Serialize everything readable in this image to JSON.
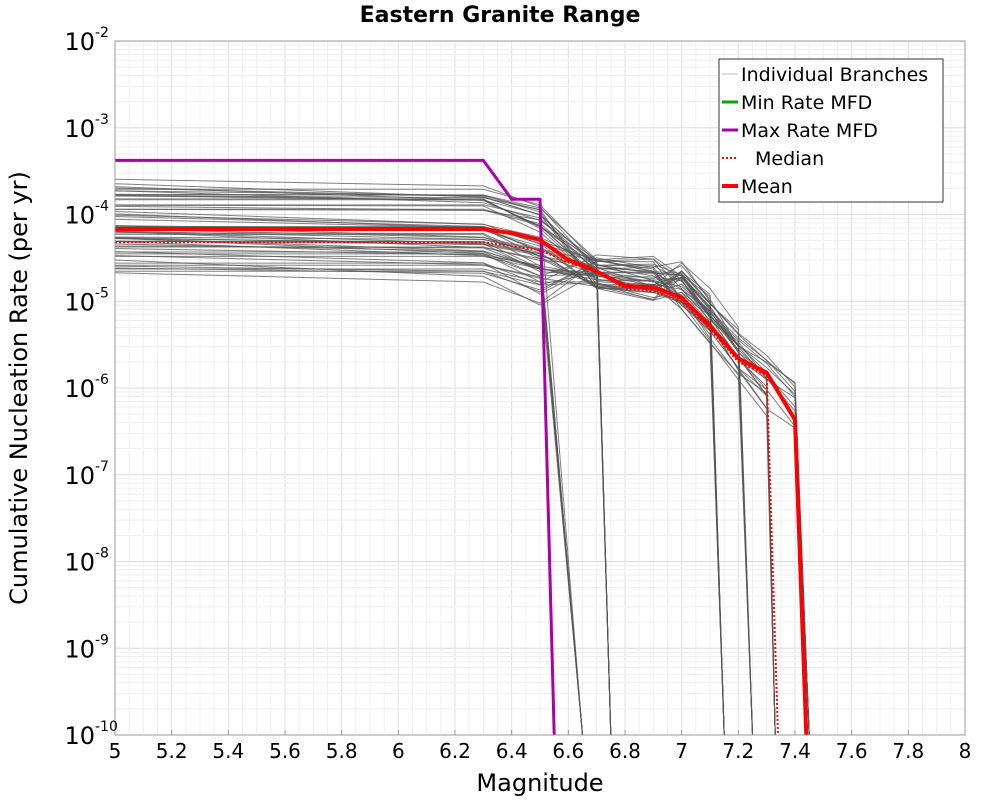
{
  "chart_data": {
    "type": "line",
    "title": "Eastern Granite Range",
    "xlabel": "Magnitude",
    "ylabel": "Cumulative Nucleation Rate (per yr)",
    "xlim": [
      5,
      8
    ],
    "ylim_log10": [
      -10,
      -2
    ],
    "y_scale": "log",
    "x_ticks": [
      "5",
      "5.2",
      "5.4",
      "5.6",
      "5.8",
      "6",
      "6.2",
      "6.4",
      "6.6",
      "6.8",
      "7",
      "7.2",
      "7.4",
      "7.6",
      "7.8",
      "8"
    ],
    "y_ticks": [
      {
        "base": "10",
        "exp": "-10",
        "value_log10": -10
      },
      {
        "base": "10",
        "exp": "-9",
        "value_log10": -9
      },
      {
        "base": "10",
        "exp": "-8",
        "value_log10": -8
      },
      {
        "base": "10",
        "exp": "-7",
        "value_log10": -7
      },
      {
        "base": "10",
        "exp": "-6",
        "value_log10": -6
      },
      {
        "base": "10",
        "exp": "-5",
        "value_log10": -5
      },
      {
        "base": "10",
        "exp": "-4",
        "value_log10": -4
      },
      {
        "base": "10",
        "exp": "-3",
        "value_log10": -3
      },
      {
        "base": "10",
        "exp": "-2",
        "value_log10": -2
      }
    ],
    "legend": {
      "position": "top-right",
      "entries": [
        {
          "label": "Individual Branches",
          "color": "#bbbbbb",
          "style": "thin"
        },
        {
          "label": "Min Rate MFD",
          "color": "#00aa00",
          "style": "solid"
        },
        {
          "label": "Max Rate MFD",
          "color": "#aa00aa",
          "style": "solid"
        },
        {
          "label": "Median",
          "color": "#ff0000",
          "style": "dotted"
        },
        {
          "label": "Mean",
          "color": "#ff0000",
          "style": "thick"
        }
      ]
    },
    "series": [
      {
        "name": "Max Rate MFD",
        "color": "#aa00aa",
        "points": [
          [
            5.0,
            0.00042
          ],
          [
            6.3,
            0.00042
          ],
          [
            6.4,
            0.00015
          ],
          [
            6.5,
            0.00015
          ],
          [
            6.55,
            1e-10
          ]
        ]
      },
      {
        "name": "Median",
        "color": "#ff0000",
        "points": [
          [
            5.0,
            4.8e-05
          ],
          [
            6.3,
            4.8e-05
          ],
          [
            6.4,
            4.3e-05
          ],
          [
            6.5,
            3.9e-05
          ],
          [
            6.6,
            2.8e-05
          ],
          [
            6.7,
            2.2e-05
          ],
          [
            6.8,
            1.4e-05
          ],
          [
            6.9,
            1.3e-05
          ],
          [
            7.0,
            1e-05
          ],
          [
            7.1,
            4.8e-06
          ],
          [
            7.2,
            2e-06
          ],
          [
            7.3,
            1.4e-06
          ],
          [
            7.34,
            1e-10
          ]
        ]
      },
      {
        "name": "Mean",
        "color": "#ff0000",
        "points": [
          [
            5.0,
            6.8e-05
          ],
          [
            6.3,
            6.8e-05
          ],
          [
            6.4,
            6.1e-05
          ],
          [
            6.5,
            5.1e-05
          ],
          [
            6.6,
            3e-05
          ],
          [
            6.7,
            2.2e-05
          ],
          [
            6.8,
            1.5e-05
          ],
          [
            6.9,
            1.45e-05
          ],
          [
            7.0,
            1.1e-05
          ],
          [
            7.1,
            5.2e-06
          ],
          [
            7.2,
            2.2e-06
          ],
          [
            7.3,
            1.5e-06
          ],
          [
            7.4,
            4.3e-07
          ],
          [
            7.44,
            1e-10
          ]
        ]
      }
    ],
    "branches": {
      "count": 60,
      "color": "#555555",
      "plateau_range": [
        2.1e-05,
        0.00028
      ],
      "knot_magnitudes": [
        6.3,
        6.5,
        6.7,
        6.9,
        7.0,
        7.1,
        7.2,
        7.3,
        7.4
      ],
      "cutoff_magnitudes": [
        6.65,
        6.75,
        7.15,
        7.25,
        7.33,
        7.45
      ]
    }
  }
}
